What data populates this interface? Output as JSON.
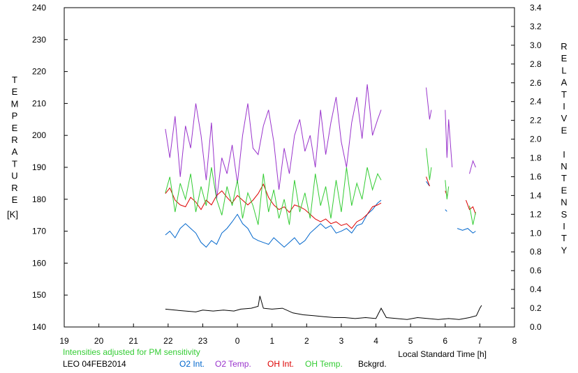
{
  "chart_data": {
    "type": "line",
    "title": "",
    "note": "Intensities adjusted for PM sensitivity",
    "station": "LEO 04FEB2014",
    "xlabel": "Local Standard Time [h]",
    "ylabel_left": "TEMPERATURE",
    "ylabel_left_unit": "[K]",
    "ylabel_right": "RELATIVE INTENSITY",
    "xlim": [
      19,
      32
    ],
    "x_ticks": [
      19,
      20,
      21,
      22,
      23,
      24,
      25,
      26,
      27,
      28,
      29,
      30,
      31,
      32
    ],
    "x_tick_labels": [
      "19",
      "20",
      "21",
      "22",
      "23",
      "0",
      "1",
      "2",
      "3",
      "4",
      "5",
      "6",
      "7",
      "8"
    ],
    "ylim_left": [
      140,
      240
    ],
    "y_left_ticks": [
      "140",
      "150",
      "160",
      "170",
      "180",
      "190",
      "200",
      "210",
      "220",
      "230",
      "240"
    ],
    "ylim_right": [
      0.0,
      3.4
    ],
    "y_right_ticks": [
      "0.0",
      "0.2",
      "0.4",
      "0.6",
      "0.8",
      "1.0",
      "1.2",
      "1.4",
      "1.6",
      "1.8",
      "2.0",
      "2.2",
      "2.4",
      "2.6",
      "2.8",
      "3.0",
      "3.2",
      "3.4"
    ],
    "grid": false,
    "legend_position": "bottom",
    "series": [
      {
        "name": "O2 Int.",
        "color": "#0066cc",
        "axis": "right",
        "segments": [
          [
            [
              21.92,
              0.98
            ],
            [
              22.05,
              1.02
            ],
            [
              22.2,
              0.95
            ],
            [
              22.35,
              1.05
            ],
            [
              22.5,
              1.1
            ],
            [
              22.65,
              1.05
            ],
            [
              22.8,
              1.0
            ],
            [
              22.95,
              0.9
            ],
            [
              23.1,
              0.85
            ],
            [
              23.25,
              0.92
            ],
            [
              23.4,
              0.88
            ],
            [
              23.55,
              1.0
            ],
            [
              23.7,
              1.05
            ],
            [
              23.85,
              1.12
            ],
            [
              24.0,
              1.2
            ],
            [
              24.15,
              1.1
            ],
            [
              24.3,
              1.05
            ],
            [
              24.45,
              0.95
            ],
            [
              24.6,
              0.92
            ],
            [
              24.75,
              0.9
            ],
            [
              24.9,
              0.88
            ],
            [
              25.05,
              0.95
            ],
            [
              25.2,
              0.9
            ],
            [
              25.35,
              0.85
            ],
            [
              25.5,
              0.9
            ],
            [
              25.65,
              0.95
            ],
            [
              25.8,
              0.88
            ],
            [
              25.95,
              0.92
            ],
            [
              26.1,
              1.0
            ],
            [
              26.25,
              1.05
            ],
            [
              26.4,
              1.1
            ],
            [
              26.55,
              1.05
            ],
            [
              26.7,
              1.08
            ],
            [
              26.85,
              1.0
            ],
            [
              27.0,
              1.02
            ],
            [
              27.15,
              1.05
            ],
            [
              27.3,
              1.0
            ],
            [
              27.45,
              1.08
            ],
            [
              27.6,
              1.1
            ],
            [
              27.75,
              1.2
            ],
            [
              27.9,
              1.25
            ],
            [
              28.05,
              1.32
            ],
            [
              28.15,
              1.35
            ]
          ],
          [
            [
              29.45,
              1.55
            ],
            [
              29.55,
              1.5
            ]
          ],
          [
            [
              30.0,
              1.25
            ],
            [
              30.05,
              1.23
            ]
          ],
          [
            [
              30.35,
              1.05
            ],
            [
              30.5,
              1.03
            ],
            [
              30.65,
              1.05
            ],
            [
              30.8,
              1.0
            ],
            [
              30.88,
              1.02
            ]
          ]
        ]
      },
      {
        "name": "O2 Temp.",
        "color": "#9933cc",
        "axis": "left",
        "segments": [
          [
            [
              21.92,
              202
            ],
            [
              22.05,
              193
            ],
            [
              22.2,
              206
            ],
            [
              22.35,
              187
            ],
            [
              22.5,
              203
            ],
            [
              22.65,
              196
            ],
            [
              22.8,
              210
            ],
            [
              22.95,
              200
            ],
            [
              23.1,
              186
            ],
            [
              23.25,
              204
            ],
            [
              23.4,
              180
            ],
            [
              23.55,
              193
            ],
            [
              23.7,
              188
            ],
            [
              23.85,
              197
            ],
            [
              24.0,
              185
            ],
            [
              24.15,
              200
            ],
            [
              24.3,
              210
            ],
            [
              24.45,
              196
            ],
            [
              24.6,
              194
            ],
            [
              24.75,
              203
            ],
            [
              24.9,
              208
            ],
            [
              25.05,
              198
            ],
            [
              25.2,
              183
            ],
            [
              25.35,
              196
            ],
            [
              25.5,
              188
            ],
            [
              25.65,
              200
            ],
            [
              25.8,
              205
            ],
            [
              25.95,
              195
            ],
            [
              26.1,
              200
            ],
            [
              26.25,
              190
            ],
            [
              26.4,
              208
            ],
            [
              26.55,
              194
            ],
            [
              26.7,
              204
            ],
            [
              26.85,
              212
            ],
            [
              27.0,
              198
            ],
            [
              27.15,
              190
            ],
            [
              27.3,
              204
            ],
            [
              27.45,
              212
            ],
            [
              27.6,
              199
            ],
            [
              27.75,
              216
            ],
            [
              27.9,
              200
            ],
            [
              28.05,
              205
            ],
            [
              28.15,
              208
            ]
          ],
          [
            [
              29.45,
              215
            ],
            [
              29.55,
              205
            ],
            [
              29.6,
              208
            ]
          ],
          [
            [
              30.0,
              208
            ],
            [
              30.05,
              193
            ],
            [
              30.1,
              205
            ],
            [
              30.2,
              190
            ]
          ],
          [
            [
              30.7,
              188
            ],
            [
              30.8,
              192
            ],
            [
              30.88,
              190
            ]
          ]
        ]
      },
      {
        "name": "OH Int.",
        "color": "#dd0000",
        "axis": "right",
        "segments": [
          [
            [
              21.92,
              1.42
            ],
            [
              22.05,
              1.48
            ],
            [
              22.2,
              1.35
            ],
            [
              22.35,
              1.3
            ],
            [
              22.5,
              1.28
            ],
            [
              22.65,
              1.38
            ],
            [
              22.8,
              1.33
            ],
            [
              22.95,
              1.25
            ],
            [
              23.1,
              1.35
            ],
            [
              23.25,
              1.3
            ],
            [
              23.4,
              1.4
            ],
            [
              23.55,
              1.45
            ],
            [
              23.7,
              1.38
            ],
            [
              23.85,
              1.32
            ],
            [
              24.0,
              1.4
            ],
            [
              24.15,
              1.35
            ],
            [
              24.3,
              1.3
            ],
            [
              24.45,
              1.35
            ],
            [
              24.6,
              1.42
            ],
            [
              24.75,
              1.52
            ],
            [
              24.9,
              1.38
            ],
            [
              25.05,
              1.3
            ],
            [
              25.2,
              1.25
            ],
            [
              25.35,
              1.28
            ],
            [
              25.5,
              1.22
            ],
            [
              25.65,
              1.3
            ],
            [
              25.8,
              1.28
            ],
            [
              25.95,
              1.25
            ],
            [
              26.1,
              1.2
            ],
            [
              26.25,
              1.15
            ],
            [
              26.4,
              1.12
            ],
            [
              26.55,
              1.15
            ],
            [
              26.7,
              1.1
            ],
            [
              26.85,
              1.12
            ],
            [
              27.0,
              1.08
            ],
            [
              27.15,
              1.1
            ],
            [
              27.3,
              1.05
            ],
            [
              27.45,
              1.12
            ],
            [
              27.6,
              1.15
            ],
            [
              27.75,
              1.2
            ],
            [
              27.9,
              1.28
            ],
            [
              28.05,
              1.3
            ],
            [
              28.15,
              1.32
            ]
          ],
          [
            [
              29.45,
              1.6
            ],
            [
              29.55,
              1.5
            ]
          ],
          [
            [
              30.0,
              1.45
            ],
            [
              30.05,
              1.4
            ]
          ],
          [
            [
              30.6,
              1.35
            ],
            [
              30.7,
              1.25
            ],
            [
              30.8,
              1.28
            ],
            [
              30.88,
              1.2
            ]
          ]
        ]
      },
      {
        "name": "OH Temp.",
        "color": "#33cc33",
        "axis": "left",
        "segments": [
          [
            [
              21.92,
              182
            ],
            [
              22.05,
              187
            ],
            [
              22.2,
              176
            ],
            [
              22.35,
              185
            ],
            [
              22.5,
              180
            ],
            [
              22.65,
              188
            ],
            [
              22.8,
              176
            ],
            [
              22.95,
              184
            ],
            [
              23.1,
              178
            ],
            [
              23.25,
              190
            ],
            [
              23.4,
              180
            ],
            [
              23.55,
              175
            ],
            [
              23.7,
              184
            ],
            [
              23.85,
              178
            ],
            [
              24.0,
              186
            ],
            [
              24.15,
              174
            ],
            [
              24.3,
              182
            ],
            [
              24.45,
              178
            ],
            [
              24.6,
              172
            ],
            [
              24.75,
              188
            ],
            [
              24.9,
              176
            ],
            [
              25.05,
              183
            ],
            [
              25.2,
              174
            ],
            [
              25.35,
              180
            ],
            [
              25.5,
              172
            ],
            [
              25.65,
              186
            ],
            [
              25.8,
              176
            ],
            [
              25.95,
              182
            ],
            [
              26.1,
              174
            ],
            [
              26.25,
              188
            ],
            [
              26.4,
              178
            ],
            [
              26.55,
              184
            ],
            [
              26.7,
              174
            ],
            [
              26.85,
              186
            ],
            [
              27.0,
              176
            ],
            [
              27.15,
              190
            ],
            [
              27.3,
              178
            ],
            [
              27.45,
              185
            ],
            [
              27.6,
              180
            ],
            [
              27.75,
              190
            ],
            [
              27.9,
              183
            ],
            [
              28.05,
              188
            ],
            [
              28.15,
              186
            ]
          ],
          [
            [
              29.45,
              196
            ],
            [
              29.55,
              186
            ],
            [
              29.6,
              190
            ]
          ],
          [
            [
              30.0,
              186
            ],
            [
              30.05,
              180
            ],
            [
              30.1,
              184
            ]
          ],
          [
            [
              30.7,
              178
            ],
            [
              30.8,
              172
            ],
            [
              30.88,
              176
            ]
          ]
        ]
      },
      {
        "name": "Bckgrd.",
        "color": "#000000",
        "axis": "right",
        "segments": [
          [
            [
              21.92,
              0.19
            ],
            [
              22.2,
              0.18
            ],
            [
              22.5,
              0.17
            ],
            [
              22.8,
              0.16
            ],
            [
              23.0,
              0.18
            ],
            [
              23.3,
              0.17
            ],
            [
              23.6,
              0.18
            ],
            [
              23.9,
              0.17
            ],
            [
              24.1,
              0.19
            ],
            [
              24.4,
              0.2
            ],
            [
              24.6,
              0.22
            ],
            [
              24.65,
              0.33
            ],
            [
              24.75,
              0.2
            ],
            [
              25.0,
              0.19
            ],
            [
              25.3,
              0.2
            ],
            [
              25.6,
              0.15
            ],
            [
              25.9,
              0.13
            ],
            [
              26.2,
              0.12
            ],
            [
              26.5,
              0.11
            ],
            [
              26.8,
              0.1
            ],
            [
              27.1,
              0.1
            ],
            [
              27.4,
              0.09
            ],
            [
              27.7,
              0.1
            ],
            [
              28.0,
              0.09
            ],
            [
              28.15,
              0.2
            ],
            [
              28.3,
              0.1
            ],
            [
              28.6,
              0.09
            ],
            [
              28.9,
              0.08
            ],
            [
              29.2,
              0.1
            ],
            [
              29.5,
              0.09
            ],
            [
              29.8,
              0.08
            ],
            [
              30.1,
              0.09
            ],
            [
              30.4,
              0.08
            ],
            [
              30.7,
              0.1
            ],
            [
              30.9,
              0.12
            ],
            [
              31.0,
              0.2
            ],
            [
              31.05,
              0.23
            ]
          ]
        ]
      }
    ]
  }
}
